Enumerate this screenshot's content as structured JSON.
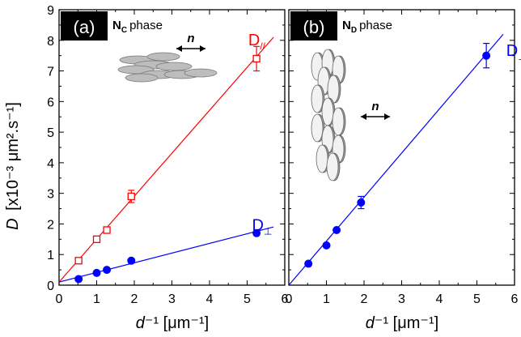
{
  "figure": {
    "ylabel_italic": "D",
    "ylabel_rest": "[x10⁻³ μm².s⁻¹]",
    "xlabel_left_italic": "d",
    "xlabel_left_rest": "⁻¹ [μm⁻¹]",
    "xlabel_right_italic": "d",
    "xlabel_right_rest": "⁻¹ [μm⁻¹]"
  },
  "chart_data": [
    {
      "type": "scatter",
      "panel_label": "(a)",
      "phase_main": "N",
      "phase_sub": "C",
      "phase_word": "phase",
      "director_label": "n",
      "xlim": [
        0,
        6
      ],
      "ylim": [
        0,
        9
      ],
      "xticks": [
        "0",
        "1",
        "2",
        "3",
        "4",
        "5",
        "6"
      ],
      "yticks": [
        "0",
        "1",
        "2",
        "3",
        "4",
        "5",
        "6",
        "7",
        "8",
        "9"
      ],
      "colors": {
        "parallel": "#ff0000",
        "perp": "#0000ff"
      },
      "series": [
        {
          "name": "D//",
          "label_main": "D",
          "label_sub": "//",
          "marker": "open-square",
          "color": "#ff0000",
          "points": [
            {
              "x": 0.52,
              "y": 0.8,
              "err": 0
            },
            {
              "x": 1.0,
              "y": 1.5,
              "err": 0
            },
            {
              "x": 1.27,
              "y": 1.8,
              "err": 0
            },
            {
              "x": 1.92,
              "y": 2.9,
              "err": 0.2
            },
            {
              "x": 5.25,
              "y": 7.4,
              "err": 0.4
            }
          ],
          "fit": {
            "x": [
              0,
              5.7
            ],
            "y": [
              0.1,
              8.1
            ]
          }
        },
        {
          "name": "D⊥",
          "label_main": "D",
          "label_sub": "⊥",
          "marker": "filled-circle",
          "color": "#0000ff",
          "points": [
            {
              "x": 0.52,
              "y": 0.2,
              "err": 0
            },
            {
              "x": 1.0,
              "y": 0.4,
              "err": 0
            },
            {
              "x": 1.27,
              "y": 0.5,
              "err": 0
            },
            {
              "x": 1.92,
              "y": 0.8,
              "err": 0
            },
            {
              "x": 5.25,
              "y": 1.7,
              "err": 0
            }
          ],
          "fit": {
            "x": [
              0,
              5.7
            ],
            "y": [
              0.1,
              1.9
            ]
          }
        }
      ]
    },
    {
      "type": "scatter",
      "panel_label": "(b)",
      "phase_main": "N",
      "phase_sub": "D",
      "phase_word": "phase",
      "director_label": "n",
      "xlim": [
        0,
        6
      ],
      "ylim": [
        0,
        9
      ],
      "xticks": [
        "0",
        "1",
        "2",
        "3",
        "4",
        "5",
        "6"
      ],
      "colors": {
        "perp": "#0000ff"
      },
      "series": [
        {
          "name": "D⊥",
          "label_main": "D",
          "label_sub": "⊥",
          "marker": "filled-circle",
          "color": "#0000ff",
          "points": [
            {
              "x": 0.52,
              "y": 0.7,
              "err": 0
            },
            {
              "x": 1.0,
              "y": 1.3,
              "err": 0
            },
            {
              "x": 1.27,
              "y": 1.8,
              "err": 0
            },
            {
              "x": 1.92,
              "y": 2.7,
              "err": 0.2
            },
            {
              "x": 5.25,
              "y": 7.5,
              "err": 0.4
            }
          ],
          "fit": {
            "x": [
              0,
              5.7
            ],
            "y": [
              0,
              8.2
            ]
          }
        }
      ]
    }
  ]
}
